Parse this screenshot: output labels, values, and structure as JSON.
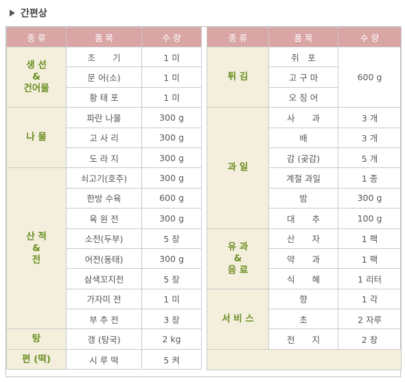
{
  "title": "간편상",
  "headers": {
    "category": "종 류",
    "item": "품 목",
    "qty": "수 량"
  },
  "left": [
    {
      "cat": [
        "생 선",
        "&",
        "건어물"
      ],
      "rows": [
        [
          "조　　기",
          "1 미"
        ],
        [
          "문 어(소)",
          "1 미"
        ],
        [
          "황 태 포",
          "1 미"
        ]
      ]
    },
    {
      "cat": [
        "나 물"
      ],
      "rows": [
        [
          "파란 나물",
          "300 g"
        ],
        [
          "고 사 리",
          "300 g"
        ],
        [
          "도 라 지",
          "300 g"
        ]
      ]
    },
    {
      "cat": [
        "산 적",
        "&",
        "전"
      ],
      "rows": [
        [
          "쇠고기(호주)",
          "300 g"
        ],
        [
          "한방 수육",
          "600 g"
        ],
        [
          "육 원 전",
          "300 g"
        ],
        [
          "소전(두부)",
          "5 장"
        ],
        [
          "어전(동태)",
          "300 g"
        ],
        [
          "삼색꼬지전",
          "5 장"
        ],
        [
          "가자미 전",
          "1 미"
        ],
        [
          "부 추 전",
          "3 장"
        ]
      ]
    },
    {
      "cat": [
        "탕"
      ],
      "rows": [
        [
          "갱 (탕국)",
          "2 kg"
        ]
      ]
    },
    {
      "cat": [
        "편 (떡)"
      ],
      "rows": [
        [
          "시 루 떡",
          "5 켜"
        ]
      ]
    }
  ],
  "right": [
    {
      "cat": [
        "튀 김"
      ],
      "rows": [
        [
          "쥐　포",
          "600 g"
        ],
        [
          "고 구 마",
          null
        ],
        [
          "오 징 어",
          null
        ]
      ]
    },
    {
      "cat": [
        "과 일"
      ],
      "rows": [
        [
          "사　　과",
          "3 개"
        ],
        [
          "배",
          "3 개"
        ],
        [
          "감 (곶감)",
          "5 개"
        ],
        [
          "계절 과일",
          "1 종"
        ],
        [
          "밤",
          "300 g"
        ],
        [
          "대　　추",
          "100 g"
        ]
      ]
    },
    {
      "cat": [
        "유 과",
        "&",
        "음 료"
      ],
      "rows": [
        [
          "산　　자",
          "1 팩"
        ],
        [
          "약　　과",
          "1 팩"
        ],
        [
          "식　　혜",
          "1 리터"
        ]
      ]
    },
    {
      "cat": [
        "서 비 스"
      ],
      "rows": [
        [
          "향",
          "1 각"
        ],
        [
          "초",
          "2 자루"
        ],
        [
          "전　　지",
          "2 장"
        ]
      ]
    }
  ],
  "colors": {
    "header": "#d9a5a5",
    "category_bg": "#f3efdc",
    "category_text": "#6b8e23"
  }
}
